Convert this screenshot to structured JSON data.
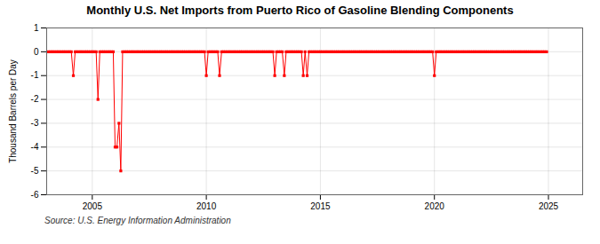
{
  "chart_data": {
    "type": "line",
    "title": "Monthly U.S. Net Imports from Puerto Rico of Gasoline Blending Components",
    "ylabel": "Thousand Barrels per Day",
    "source": "Source: U.S. Energy Information Administration",
    "xlim": [
      2003.0,
      2026.5
    ],
    "ylim": [
      -6,
      1
    ],
    "xticks": [
      2005,
      2010,
      2015,
      2020,
      2025
    ],
    "yticks": [
      1,
      0,
      -1,
      -2,
      -3,
      -4,
      -5,
      -6
    ],
    "grid": true,
    "color": "#ff0000",
    "marker": "square",
    "x": [
      2003.08,
      2003.17,
      2003.25,
      2003.33,
      2003.42,
      2003.5,
      2003.58,
      2003.67,
      2003.75,
      2003.83,
      2003.92,
      2004.0,
      2004.08,
      2004.17,
      2004.25,
      2004.33,
      2004.42,
      2004.5,
      2004.58,
      2004.67,
      2004.75,
      2004.83,
      2004.92,
      2005.0,
      2005.08,
      2005.17,
      2005.25,
      2005.33,
      2005.42,
      2005.5,
      2005.58,
      2005.67,
      2005.75,
      2005.83,
      2005.92,
      2006.0,
      2006.08,
      2006.17,
      2006.25,
      2006.33,
      2006.42,
      2006.5,
      2006.58,
      2006.67,
      2006.75,
      2006.83,
      2006.92,
      2007.0,
      2007.08,
      2007.17,
      2007.25,
      2007.33,
      2007.42,
      2007.5,
      2007.58,
      2007.67,
      2007.75,
      2007.83,
      2007.92,
      2008.0,
      2008.08,
      2008.17,
      2008.25,
      2008.33,
      2008.42,
      2008.5,
      2008.58,
      2008.67,
      2008.75,
      2008.83,
      2008.92,
      2009.0,
      2009.08,
      2009.17,
      2009.25,
      2009.33,
      2009.42,
      2009.5,
      2009.58,
      2009.67,
      2009.75,
      2009.83,
      2009.92,
      2010.0,
      2010.08,
      2010.17,
      2010.25,
      2010.33,
      2010.42,
      2010.5,
      2010.58,
      2010.67,
      2010.75,
      2010.83,
      2010.92,
      2011.0,
      2011.08,
      2011.17,
      2011.25,
      2011.33,
      2011.42,
      2011.5,
      2011.58,
      2011.67,
      2011.75,
      2011.83,
      2011.92,
      2012.0,
      2012.08,
      2012.17,
      2012.25,
      2012.33,
      2012.42,
      2012.5,
      2012.58,
      2012.67,
      2012.75,
      2012.83,
      2012.92,
      2013.0,
      2013.08,
      2013.17,
      2013.25,
      2013.33,
      2013.42,
      2013.5,
      2013.58,
      2013.67,
      2013.75,
      2013.83,
      2013.92,
      2014.0,
      2014.08,
      2014.17,
      2014.25,
      2014.33,
      2014.42,
      2014.5,
      2014.58,
      2014.67,
      2014.75,
      2014.83,
      2014.92,
      2015.0,
      2015.08,
      2015.17,
      2015.25,
      2015.33,
      2015.42,
      2015.5,
      2015.58,
      2015.67,
      2015.75,
      2015.83,
      2015.92,
      2016.0,
      2016.08,
      2016.17,
      2016.25,
      2016.33,
      2016.42,
      2016.5,
      2016.58,
      2016.67,
      2016.75,
      2016.83,
      2016.92,
      2017.0,
      2017.08,
      2017.17,
      2017.25,
      2017.33,
      2017.42,
      2017.5,
      2017.58,
      2017.67,
      2017.75,
      2017.83,
      2017.92,
      2018.0,
      2018.08,
      2018.17,
      2018.25,
      2018.33,
      2018.42,
      2018.5,
      2018.58,
      2018.67,
      2018.75,
      2018.83,
      2018.92,
      2019.0,
      2019.08,
      2019.17,
      2019.25,
      2019.33,
      2019.42,
      2019.5,
      2019.58,
      2019.67,
      2019.75,
      2019.83,
      2019.92,
      2020.0,
      2020.08,
      2020.17,
      2020.25,
      2020.33,
      2020.42,
      2020.5,
      2020.58,
      2020.67,
      2020.75,
      2020.83,
      2020.92,
      2021.0,
      2021.08,
      2021.17,
      2021.25,
      2021.33,
      2021.42,
      2021.5,
      2021.58,
      2021.67,
      2021.75,
      2021.83,
      2021.92,
      2022.0,
      2022.08,
      2022.17,
      2022.25,
      2022.33,
      2022.42,
      2022.5,
      2022.58,
      2022.67,
      2022.75,
      2022.83,
      2022.92,
      2023.0,
      2023.08,
      2023.17,
      2023.25,
      2023.33,
      2023.42,
      2023.5,
      2023.58,
      2023.67,
      2023.75,
      2023.83,
      2023.92,
      2024.0,
      2024.08,
      2024.17,
      2024.25,
      2024.33,
      2024.42,
      2024.5,
      2024.58,
      2024.67,
      2024.75,
      2024.83,
      2024.92
    ],
    "values": [
      0,
      0,
      0,
      0,
      0,
      0,
      0,
      0,
      0,
      0,
      0,
      0,
      0,
      -1,
      0,
      0,
      0,
      0,
      0,
      0,
      0,
      0,
      0,
      0,
      0,
      0,
      -2,
      0,
      0,
      0,
      0,
      0,
      0,
      0,
      0,
      -4,
      -4,
      -3,
      -5,
      0,
      0,
      0,
      0,
      0,
      0,
      0,
      0,
      0,
      0,
      0,
      0,
      0,
      0,
      0,
      0,
      0,
      0,
      0,
      0,
      0,
      0,
      0,
      0,
      0,
      0,
      0,
      0,
      0,
      0,
      0,
      0,
      0,
      0,
      0,
      0,
      0,
      0,
      0,
      0,
      0,
      0,
      0,
      0,
      -1,
      0,
      0,
      0,
      0,
      0,
      0,
      -1,
      0,
      0,
      0,
      0,
      0,
      0,
      0,
      0,
      0,
      0,
      0,
      0,
      0,
      0,
      0,
      0,
      0,
      0,
      0,
      0,
      0,
      0,
      0,
      0,
      0,
      0,
      0,
      0,
      -1,
      0,
      0,
      0,
      0,
      -1,
      0,
      0,
      0,
      0,
      0,
      0,
      0,
      0,
      0,
      -1,
      0,
      -1,
      0,
      0,
      0,
      0,
      0,
      0,
      0,
      0,
      0,
      0,
      0,
      0,
      0,
      0,
      0,
      0,
      0,
      0,
      0,
      0,
      0,
      0,
      0,
      0,
      0,
      0,
      0,
      0,
      0,
      0,
      0,
      0,
      0,
      0,
      0,
      0,
      0,
      0,
      0,
      0,
      0,
      0,
      0,
      0,
      0,
      0,
      0,
      0,
      0,
      0,
      0,
      0,
      0,
      0,
      0,
      0,
      0,
      0,
      0,
      0,
      0,
      0,
      0,
      0,
      0,
      0,
      -1,
      0,
      0,
      0,
      0,
      0,
      0,
      0,
      0,
      0,
      0,
      0,
      0,
      0,
      0,
      0,
      0,
      0,
      0,
      0,
      0,
      0,
      0,
      0,
      0,
      0,
      0,
      0,
      0,
      0,
      0,
      0,
      0,
      0,
      0,
      0,
      0,
      0,
      0,
      0,
      0,
      0,
      0,
      0,
      0,
      0,
      0,
      0,
      0,
      0,
      0,
      0,
      0,
      0,
      0,
      0,
      0,
      0,
      0,
      0
    ]
  }
}
